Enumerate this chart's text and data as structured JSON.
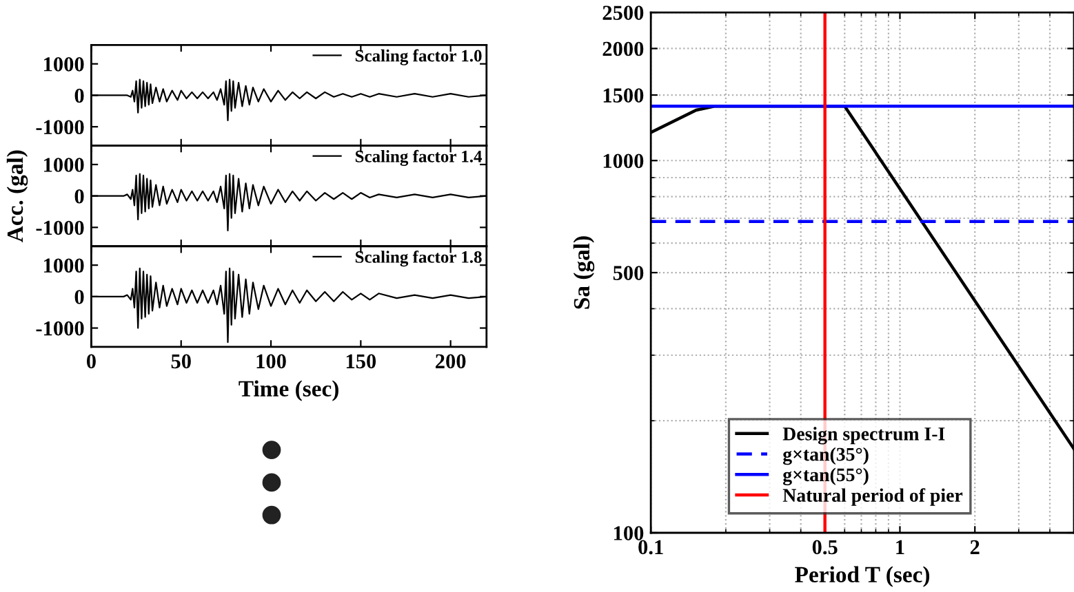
{
  "chart_data": [
    {
      "type": "line",
      "x": [
        0,
        10,
        18,
        20,
        22,
        23,
        24,
        25,
        26,
        27,
        28,
        29,
        30,
        31,
        32,
        33,
        34,
        36,
        38,
        40,
        42,
        45,
        48,
        50,
        53,
        56,
        59,
        62,
        65,
        68,
        70,
        72,
        74,
        75,
        76,
        77,
        78,
        79,
        80,
        82,
        84,
        86,
        88,
        90,
        93,
        96,
        100,
        104,
        108,
        112,
        116,
        120,
        125,
        130,
        135,
        140,
        145,
        150,
        155,
        160,
        170,
        180,
        190,
        200,
        210,
        220
      ],
      "series": [
        {
          "name": "Scaling factor 1.0",
          "color": "#000000",
          "values": [
            0,
            0,
            0,
            0,
            -50,
            150,
            -200,
            450,
            -550,
            500,
            -400,
            450,
            -350,
            400,
            -300,
            350,
            -250,
            250,
            -200,
            200,
            -200,
            150,
            -150,
            150,
            -100,
            100,
            -100,
            100,
            -100,
            100,
            -150,
            200,
            -300,
            450,
            -800,
            500,
            -500,
            450,
            -400,
            400,
            -350,
            300,
            -300,
            250,
            -200,
            200,
            -200,
            150,
            -150,
            100,
            -100,
            100,
            -100,
            100,
            -50,
            50,
            -50,
            50,
            -50,
            50,
            -50,
            50,
            -50,
            50,
            -50,
            0
          ]
        }
      ],
      "xlim": [
        0,
        220
      ],
      "ylim": [
        -1600,
        1600
      ],
      "yticks": [
        -1000,
        0,
        1000
      ],
      "tick_labels": "y",
      "legend": "top right"
    },
    {
      "type": "line",
      "x": [
        0,
        10,
        18,
        20,
        22,
        23,
        24,
        25,
        26,
        27,
        28,
        29,
        30,
        31,
        32,
        33,
        34,
        36,
        38,
        40,
        42,
        45,
        48,
        50,
        53,
        56,
        59,
        62,
        65,
        68,
        70,
        72,
        74,
        75,
        76,
        77,
        78,
        79,
        80,
        82,
        84,
        86,
        88,
        90,
        93,
        96,
        100,
        104,
        108,
        112,
        116,
        120,
        125,
        130,
        135,
        140,
        145,
        150,
        155,
        160,
        170,
        180,
        190,
        200,
        210,
        220
      ],
      "series": [
        {
          "name": "Scaling factor 1.4",
          "color": "#000000",
          "values": [
            0,
            0,
            0,
            50,
            -100,
            200,
            -300,
            650,
            -750,
            700,
            -550,
            650,
            -500,
            550,
            -400,
            500,
            -350,
            350,
            -300,
            300,
            -250,
            200,
            -200,
            200,
            -150,
            150,
            -150,
            150,
            -150,
            150,
            -200,
            300,
            -400,
            650,
            -1100,
            700,
            -700,
            650,
            -550,
            550,
            -500,
            400,
            -400,
            350,
            -300,
            300,
            -250,
            200,
            -200,
            150,
            -150,
            150,
            -150,
            100,
            -100,
            100,
            -100,
            100,
            -50,
            50,
            -50,
            50,
            -50,
            50,
            -50,
            0
          ]
        }
      ],
      "ylabel": "Acc. (gal)",
      "xlim": [
        0,
        220
      ],
      "ylim": [
        -1600,
        1600
      ],
      "yticks": [
        -1000,
        0,
        1000
      ],
      "tick_labels": "y",
      "legend": "top right"
    },
    {
      "type": "line",
      "x": [
        0,
        10,
        18,
        20,
        22,
        23,
        24,
        25,
        26,
        27,
        28,
        29,
        30,
        31,
        32,
        33,
        34,
        36,
        38,
        40,
        42,
        45,
        48,
        50,
        53,
        56,
        59,
        62,
        65,
        68,
        70,
        72,
        74,
        75,
        76,
        77,
        78,
        79,
        80,
        82,
        84,
        86,
        88,
        90,
        93,
        96,
        100,
        104,
        108,
        112,
        116,
        120,
        125,
        130,
        135,
        140,
        145,
        150,
        155,
        160,
        170,
        180,
        190,
        200,
        210,
        220
      ],
      "series": [
        {
          "name": "Scaling factor 1.8",
          "color": "#000000",
          "values": [
            0,
            0,
            0,
            50,
            -100,
            250,
            -350,
            800,
            -1000,
            900,
            -700,
            800,
            -650,
            700,
            -550,
            650,
            -450,
            450,
            -350,
            350,
            -300,
            250,
            -250,
            250,
            -200,
            200,
            -200,
            200,
            -200,
            200,
            -250,
            350,
            -550,
            800,
            -1450,
            900,
            -900,
            800,
            -700,
            700,
            -650,
            550,
            -550,
            450,
            -400,
            350,
            -300,
            250,
            -250,
            200,
            -200,
            200,
            -150,
            150,
            -150,
            150,
            -100,
            100,
            -100,
            100,
            -50,
            50,
            -50,
            50,
            -50,
            0
          ]
        }
      ],
      "xlabel": "Time (sec)",
      "xlim": [
        0,
        220
      ],
      "xticks": [
        0,
        50,
        100,
        150,
        200
      ],
      "ylim": [
        -1600,
        1600
      ],
      "yticks": [
        -1000,
        0,
        1000
      ],
      "legend": "top right"
    },
    {
      "type": "line",
      "log": "xy",
      "grid": true,
      "legend": "bottom",
      "series": [
        {
          "name": "Design spectrum I-I",
          "color": "#000000",
          "x": [
            0.1,
            0.152,
            0.18,
            0.6,
            5
          ],
          "values": [
            1190,
            1366,
            1400,
            1400,
            168
          ]
        },
        {
          "name": "g×tan(35°)",
          "color": "#0000ff",
          "line_style": "dashed",
          "x": [
            0.1,
            5
          ],
          "values": [
            686,
            686
          ]
        },
        {
          "name": "g×tan(55°)",
          "color": "#0000ff",
          "x": [
            0.1,
            5
          ],
          "values": [
            1400,
            1400
          ]
        }
      ],
      "ref_lines": [
        {
          "axis": "x",
          "value": 0.5,
          "label": "Natural period of pier",
          "color": "#ff0000"
        }
      ],
      "xlabel": "Period T (sec)",
      "ylabel": "Sa (gal)",
      "xlim": [
        0.1,
        5
      ],
      "xticks": [
        0.1,
        0.5,
        1,
        2
      ],
      "ylim": [
        100,
        2500
      ],
      "yticks": [
        100,
        500,
        1000,
        1500,
        2000,
        2500
      ]
    }
  ]
}
